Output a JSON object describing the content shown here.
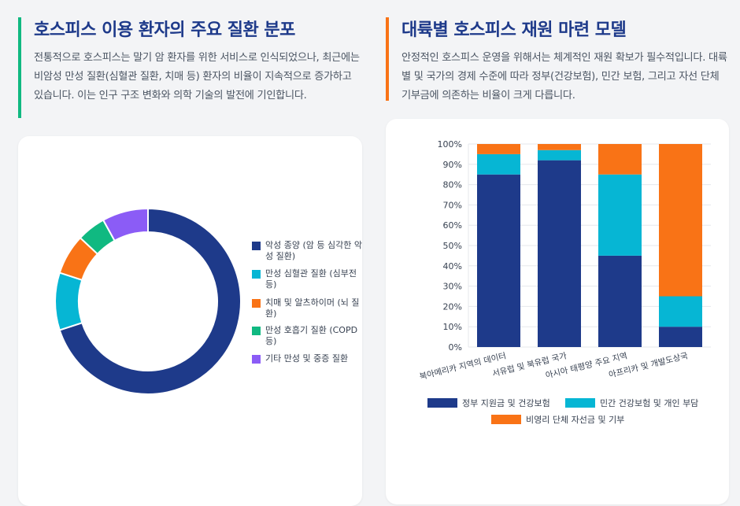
{
  "left": {
    "title": "호스피스 이용 환자의 주요 질환 분포",
    "description": "전통적으로 호스피스는 말기 암 환자를 위한 서비스로 인식되었으나, 최근에는 비암성 만성 질환(심혈관 질환, 치매 등) 환자의 비율이 지속적으로 증가하고 있습니다. 이는 인구 구조 변화와 의학 기술의 발전에 기인합니다."
  },
  "right": {
    "title": "대륙별 호스피스 재원 마련 모델",
    "description": "안정적인 호스피스 운영을 위해서는 체계적인 재원 확보가 필수적입니다. 대륙별 및 국가의 경제 수준에 따라 정부(건강보험), 민간 보험, 그리고 자선 단체 기부금에 의존하는 비율이 크게 다릅니다."
  },
  "colors": {
    "navy": "#1e3a8a",
    "cyan": "#06b6d4",
    "orange": "#f97316",
    "green": "#10b981",
    "purple": "#8b5cf6"
  },
  "chart_data": [
    {
      "type": "pie",
      "variant": "doughnut",
      "title": "",
      "legend_position": "right",
      "categories": [
        "악성 종양 (암 등 심각한 악성 질환)",
        "만성 심혈관 질환 (심부전 등)",
        "치매 및 알츠하이머 (뇌 질환)",
        "만성 호흡기 질환 (COPD 등)",
        "기타 만성 및 중증 질환"
      ],
      "values": [
        70,
        10,
        7,
        5,
        8
      ],
      "colors": [
        "#1e3a8a",
        "#06b6d4",
        "#f97316",
        "#10b981",
        "#8b5cf6"
      ]
    },
    {
      "type": "bar",
      "stacked": true,
      "title": "",
      "xlabel": "",
      "ylabel": "",
      "ylim": [
        0,
        100
      ],
      "yticks": [
        "0%",
        "10%",
        "20%",
        "30%",
        "40%",
        "50%",
        "60%",
        "70%",
        "80%",
        "90%",
        "100%"
      ],
      "categories": [
        "북아메리카 지역의 데이터",
        "서유럽 및 북유럽 국가",
        "아시아 태평양 주요 지역",
        "아프리카 및 개발도상국"
      ],
      "legend_position": "bottom",
      "series": [
        {
          "name": "정부 지원금 및 건강보험",
          "values": [
            85,
            92,
            45,
            10
          ],
          "color": "#1e3a8a"
        },
        {
          "name": "민간 건강보험 및 개인 부담",
          "values": [
            10,
            5,
            40,
            15
          ],
          "color": "#06b6d4"
        },
        {
          "name": "비영리 단체 자선금 및 기부",
          "values": [
            5,
            3,
            15,
            75
          ],
          "color": "#f97316"
        }
      ]
    }
  ]
}
